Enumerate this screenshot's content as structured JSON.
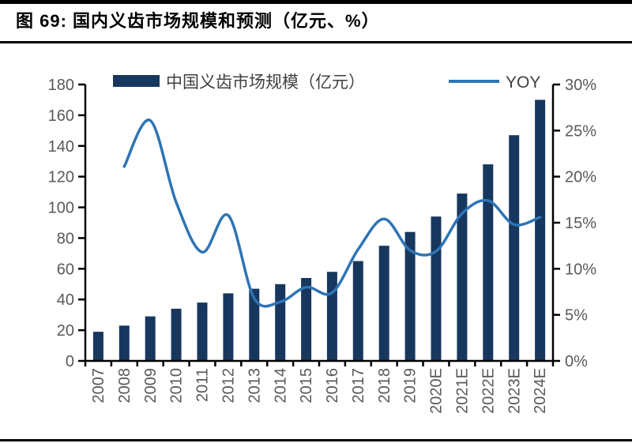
{
  "header": {
    "title": "图 69:  国内义齿市场规模和预测（亿元、%）"
  },
  "colors": {
    "bar": "#17375E",
    "line": "#2E74B5",
    "axis": "#000000",
    "tick_label": "#595959",
    "legend_text": "#404040",
    "rule": "#000000",
    "background": "#FFFFFF"
  },
  "chart_data": {
    "type": "bar",
    "subtype": "bar+line combo",
    "title": "国内义齿市场规模和预测（亿元、%）",
    "categories": [
      "2007",
      "2008",
      "2009",
      "2010",
      "2011",
      "2012",
      "2013",
      "2014",
      "2015",
      "2016",
      "2017",
      "2018",
      "2019",
      "2020E",
      "2021E",
      "2022E",
      "2023E",
      "2024E"
    ],
    "series": [
      {
        "name": "中国义齿市场规模（亿元）",
        "type": "bar",
        "axis": "left",
        "values": [
          19,
          23,
          29,
          34,
          38,
          44,
          47,
          50,
          54,
          58,
          65,
          75,
          84,
          94,
          109,
          128,
          147,
          170
        ]
      },
      {
        "name": "YOY",
        "type": "line",
        "axis": "right",
        "values": [
          null,
          21.1,
          26.1,
          17.2,
          11.8,
          15.8,
          6.8,
          6.4,
          8.0,
          7.4,
          12.1,
          15.4,
          12.0,
          11.9,
          16.0,
          17.4,
          14.8,
          15.6
        ]
      }
    ],
    "left_axis": {
      "min": 0,
      "max": 180,
      "step": 20,
      "tick_labels": [
        "0",
        "20",
        "40",
        "60",
        "80",
        "100",
        "120",
        "140",
        "160",
        "180"
      ]
    },
    "right_axis": {
      "min": 0,
      "max": 30,
      "step": 5,
      "tick_labels": [
        "0%",
        "5%",
        "10%",
        "15%",
        "20%",
        "25%",
        "30%"
      ]
    },
    "legend_position": "top",
    "grid": false,
    "xlabel": "",
    "ylabel_left": "亿元",
    "ylabel_right": "%"
  }
}
